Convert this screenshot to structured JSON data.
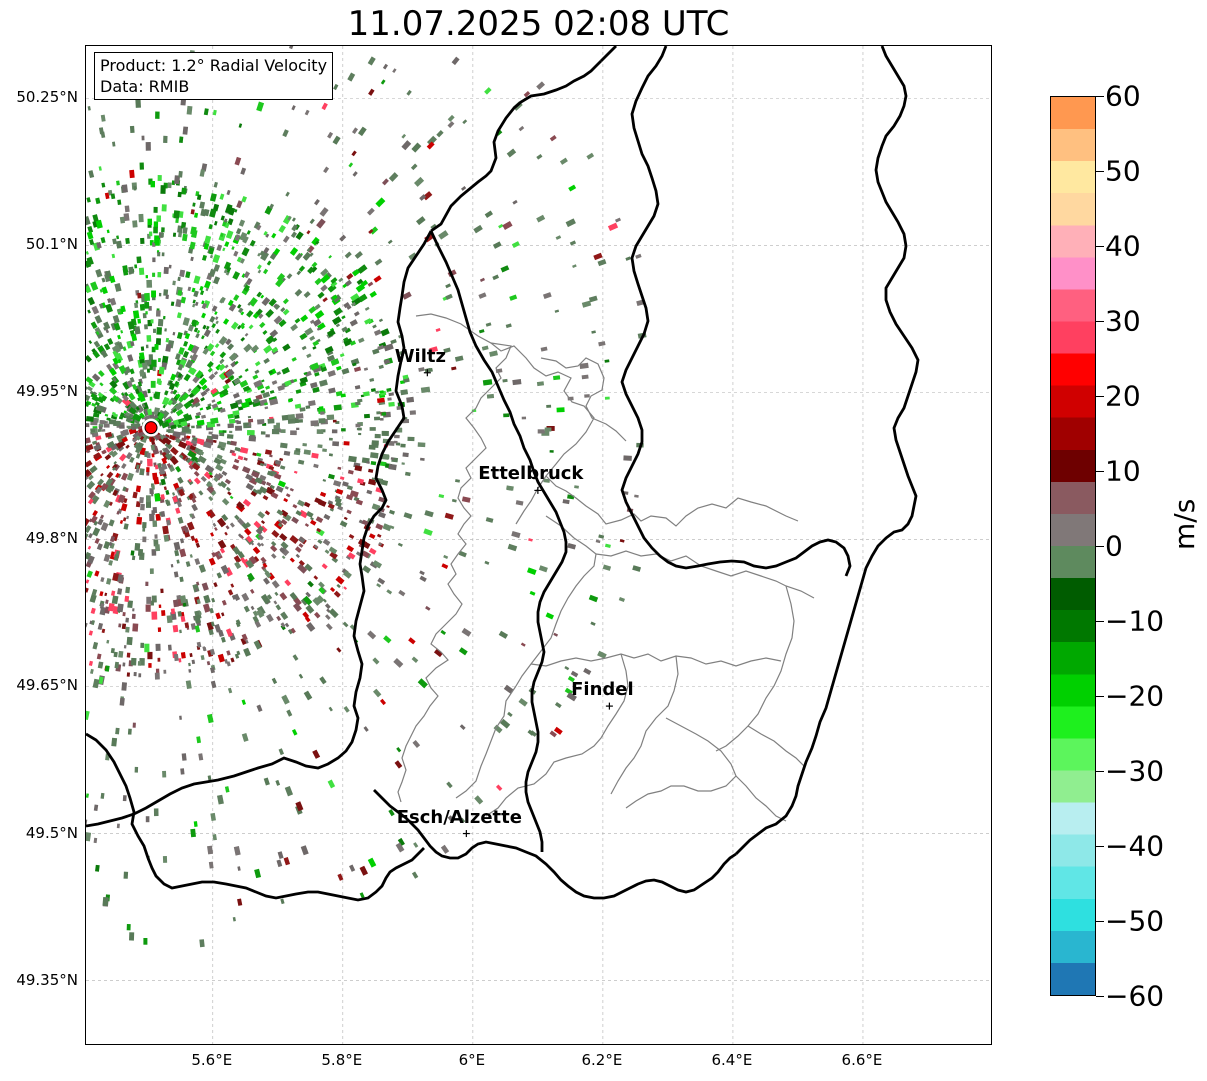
{
  "title": "11.07.2025 02:08 UTC",
  "info": {
    "product": "Product: 1.2° Radial Velocity",
    "data": "Data: RMIB"
  },
  "latitude_ticks": [
    {
      "value": 50.25,
      "label": "50.25°N"
    },
    {
      "value": 50.1,
      "label": "50.1°N"
    },
    {
      "value": 49.95,
      "label": "49.95°N"
    },
    {
      "value": 49.8,
      "label": "49.8°N"
    },
    {
      "value": 49.65,
      "label": "49.65°N"
    },
    {
      "value": 49.5,
      "label": "49.5°N"
    },
    {
      "value": 49.35,
      "label": "49.35°N"
    }
  ],
  "longitude_ticks": [
    {
      "value": 5.6,
      "label": "5.6°E"
    },
    {
      "value": 5.8,
      "label": "5.8°E"
    },
    {
      "value": 6.0,
      "label": "6°E"
    },
    {
      "value": 6.2,
      "label": "6.2°E"
    },
    {
      "value": 6.4,
      "label": "6.4°E"
    },
    {
      "value": 6.6,
      "label": "6.6°E"
    }
  ],
  "cities": [
    {
      "name": "Wiltz",
      "lon": 5.93,
      "lat": 49.97
    },
    {
      "name": "Ettelbruck",
      "lon": 6.1,
      "lat": 49.85
    },
    {
      "name": "Findel",
      "lon": 6.21,
      "lat": 49.63
    },
    {
      "name": "Esch/Alzette",
      "lon": 5.99,
      "lat": 49.5
    }
  ],
  "radar": {
    "lon": 5.505,
    "lat": 49.914,
    "color": "#ff0000"
  },
  "colorbar": {
    "label": "m/s",
    "min": -60,
    "max": 60,
    "ticks": [
      {
        "value": 60,
        "label": "60"
      },
      {
        "value": 50,
        "label": "50"
      },
      {
        "value": 40,
        "label": "40"
      },
      {
        "value": 30,
        "label": "30"
      },
      {
        "value": 20,
        "label": "20"
      },
      {
        "value": 10,
        "label": "10"
      },
      {
        "value": 0,
        "label": "0"
      },
      {
        "value": -10,
        "label": "−10"
      },
      {
        "value": -20,
        "label": "−20"
      },
      {
        "value": -30,
        "label": "−30"
      },
      {
        "value": -40,
        "label": "−40"
      },
      {
        "value": -50,
        "label": "−50"
      },
      {
        "value": -60,
        "label": "−60"
      }
    ],
    "stops": [
      "#1f77b4",
      "#29b6d0",
      "#2ee0e0",
      "#60e6e6",
      "#8ee8e8",
      "#b8eef0",
      "#90ee90",
      "#5cf55c",
      "#1ef01e",
      "#00d000",
      "#00a800",
      "#007800",
      "#005c00",
      "#5e8a5e",
      "#807878",
      "#8a5a60",
      "#6e0000",
      "#a00000",
      "#d00000",
      "#ff0000",
      "#ff4060",
      "#ff6080",
      "#ff90c8",
      "#ffb0b8",
      "#ffd8a0",
      "#ffe8a0",
      "#ffc080",
      "#ff9850"
    ]
  },
  "colors": {
    "border_country": "#000000",
    "border_canton": "#808080",
    "grid": "#b0b0b0",
    "velocity_inbound": "#1a8c1a",
    "velocity_outbound": "#8a1a1a",
    "velocity_neutral": "#6e8c6e"
  }
}
